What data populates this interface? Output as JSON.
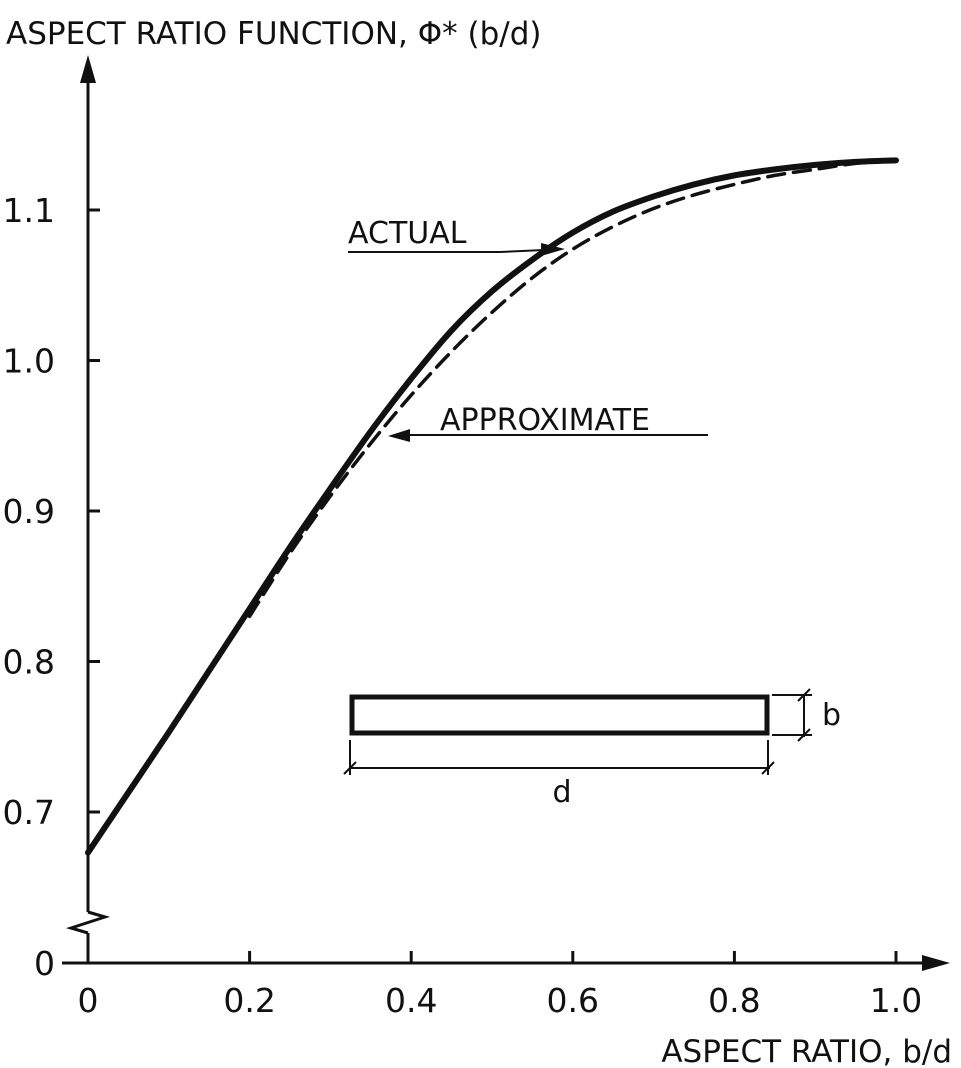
{
  "chart_data": {
    "type": "line",
    "ylabel": "ASPECT RATIO FUNCTION, Φ* (b/d)",
    "xlabel": "ASPECT RATIO, b/d",
    "xlim": [
      0,
      1.0
    ],
    "ylim": [
      0.67,
      1.13
    ],
    "y_axis_broken": true,
    "grid": false,
    "x_ticks": [
      "0",
      "0.2",
      "0.4",
      "0.6",
      "0.8",
      "1.0"
    ],
    "y_ticks": [
      "0",
      "0.7",
      "0.8",
      "0.9",
      "1.0",
      "1.1"
    ],
    "series": [
      {
        "name": "ACTUAL",
        "style": "solid",
        "x": [
          0,
          0.05,
          0.1,
          0.15,
          0.2,
          0.25,
          0.3,
          0.35,
          0.4,
          0.45,
          0.5,
          0.55,
          0.6,
          0.65,
          0.7,
          0.75,
          0.8,
          0.85,
          0.9,
          0.95,
          1.0
        ],
        "y": [
          0.673,
          0.713,
          0.753,
          0.794,
          0.835,
          0.876,
          0.915,
          0.953,
          0.988,
          1.02,
          1.046,
          1.067,
          1.085,
          1.099,
          1.109,
          1.117,
          1.123,
          1.127,
          1.13,
          1.132,
          1.133
        ]
      },
      {
        "name": "APPROXIMATE",
        "style": "dashed",
        "x": [
          0.2,
          0.25,
          0.3,
          0.35,
          0.4,
          0.45,
          0.5,
          0.55,
          0.6,
          0.65,
          0.7,
          0.75,
          0.8,
          0.85,
          0.9,
          0.95,
          1.0
        ],
        "y": [
          0.83,
          0.872,
          0.91,
          0.945,
          0.977,
          1.006,
          1.032,
          1.055,
          1.074,
          1.089,
          1.101,
          1.11,
          1.117,
          1.123,
          1.127,
          1.131,
          1.133
        ]
      }
    ],
    "annotations": [
      "ACTUAL",
      "APPROXIMATE"
    ],
    "inset": {
      "width_label": "d",
      "height_label": "b"
    }
  },
  "colors": {
    "ink": "#111111",
    "background": "#ffffff"
  }
}
